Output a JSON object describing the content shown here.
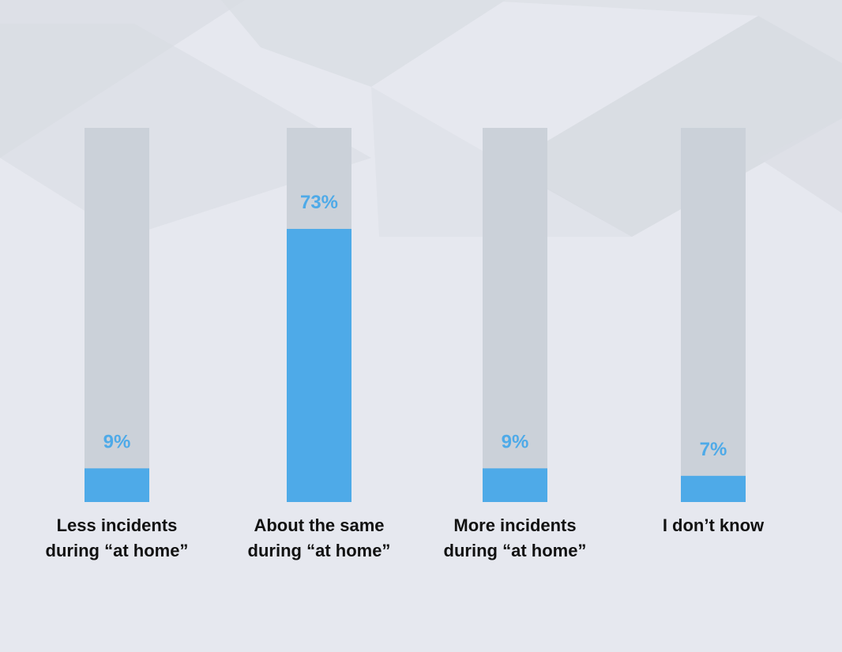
{
  "chart_data": {
    "type": "bar",
    "title": "",
    "xlabel": "",
    "ylabel": "",
    "ylim": [
      0,
      100
    ],
    "grid": false,
    "legend": "none",
    "categories": [
      [
        "Less incidents",
        "during “at home”"
      ],
      [
        "About the same",
        "during “at home”"
      ],
      [
        "More incidents",
        "during “at home”"
      ],
      [
        "I don’t know"
      ]
    ],
    "values": [
      9,
      73,
      9,
      7
    ],
    "value_labels": [
      "9%",
      "73%",
      "9%",
      "7%"
    ]
  },
  "colors": {
    "background": "#e6e8ef",
    "track": "#cbd1d9",
    "bar": "#4eaae8",
    "value_text": "#4eaae8",
    "category_text": "#111111"
  }
}
